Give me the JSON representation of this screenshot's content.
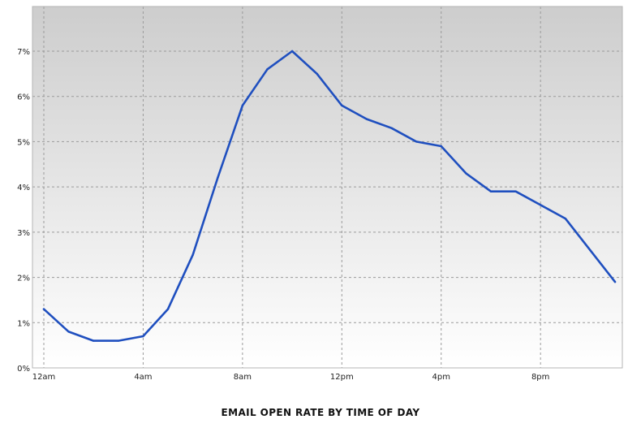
{
  "chart_data": {
    "type": "line",
    "title": "EMAIL OPEN RATE BY TIME OF DAY",
    "xlabel": "",
    "ylabel": "",
    "x_hours": [
      0,
      1,
      2,
      3,
      4,
      5,
      6,
      7,
      8,
      9,
      10,
      11,
      12,
      13,
      14,
      15,
      16,
      17,
      18,
      19,
      20,
      21,
      22,
      23
    ],
    "x_ticks": [
      {
        "hour": 0,
        "label": "12am"
      },
      {
        "hour": 4,
        "label": "4am"
      },
      {
        "hour": 8,
        "label": "8am"
      },
      {
        "hour": 12,
        "label": "12pm"
      },
      {
        "hour": 16,
        "label": "4pm"
      },
      {
        "hour": 20,
        "label": "8pm"
      }
    ],
    "y_ticks": [
      {
        "value": 0,
        "label": "0%"
      },
      {
        "value": 1,
        "label": "1%"
      },
      {
        "value": 2,
        "label": "2%"
      },
      {
        "value": 3,
        "label": "3%"
      },
      {
        "value": 4,
        "label": "4%"
      },
      {
        "value": 5,
        "label": "5%"
      },
      {
        "value": 6,
        "label": "6%"
      },
      {
        "value": 7,
        "label": "7%"
      }
    ],
    "ylim": [
      0,
      8
    ],
    "xlim": [
      0,
      23.4
    ],
    "grid": true,
    "series": [
      {
        "values": [
          1.3,
          0.8,
          0.6,
          0.6,
          0.7,
          1.3,
          2.5,
          4.2,
          5.8,
          6.6,
          7.0,
          6.5,
          5.8,
          5.5,
          5.3,
          5.0,
          4.9,
          4.3,
          3.9,
          3.9,
          3.6,
          3.3,
          2.6,
          1.9
        ],
        "color": "#1f4fbf"
      }
    ],
    "background_gradient": {
      "top": "#cdcdcd",
      "bottom": "#ffffff"
    }
  }
}
